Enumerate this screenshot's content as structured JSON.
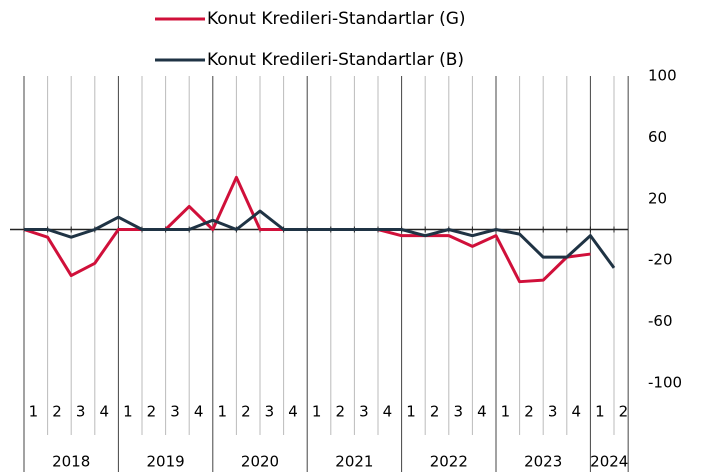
{
  "chart_data": {
    "type": "line",
    "categories": [
      "1",
      "2",
      "3",
      "4",
      "1",
      "2",
      "3",
      "4",
      "1",
      "2",
      "3",
      "4",
      "1",
      "2",
      "3",
      "4",
      "1",
      "2",
      "3",
      "4",
      "1",
      "2",
      "3",
      "4",
      "1",
      "2"
    ],
    "groups": [
      "2018",
      "2019",
      "2020",
      "2021",
      "2022",
      "2023",
      "2024"
    ],
    "series": [
      {
        "name": "Konut Kredileri-Standartlar (G)",
        "color": "#d0103a",
        "values": [
          0,
          -5,
          -30,
          -22,
          0,
          0,
          0,
          15,
          0,
          34,
          0,
          0,
          0,
          0,
          0,
          0,
          -4,
          -4,
          -4,
          -11,
          -4,
          -34,
          -33,
          -18,
          -16,
          null
        ]
      },
      {
        "name": "Konut Kredileri-Standartlar (B)",
        "color": "#1f3344",
        "values": [
          0,
          0,
          -5,
          0,
          8,
          0,
          0,
          0,
          6,
          0,
          12,
          0,
          0,
          0,
          0,
          0,
          0,
          -4,
          0,
          -4,
          0,
          -3,
          -18,
          -18,
          -4,
          -25
        ]
      }
    ],
    "ylim": [
      -100,
      100
    ],
    "yticks": [
      100,
      60,
      20,
      -20,
      -60,
      -100
    ],
    "grid": true
  }
}
